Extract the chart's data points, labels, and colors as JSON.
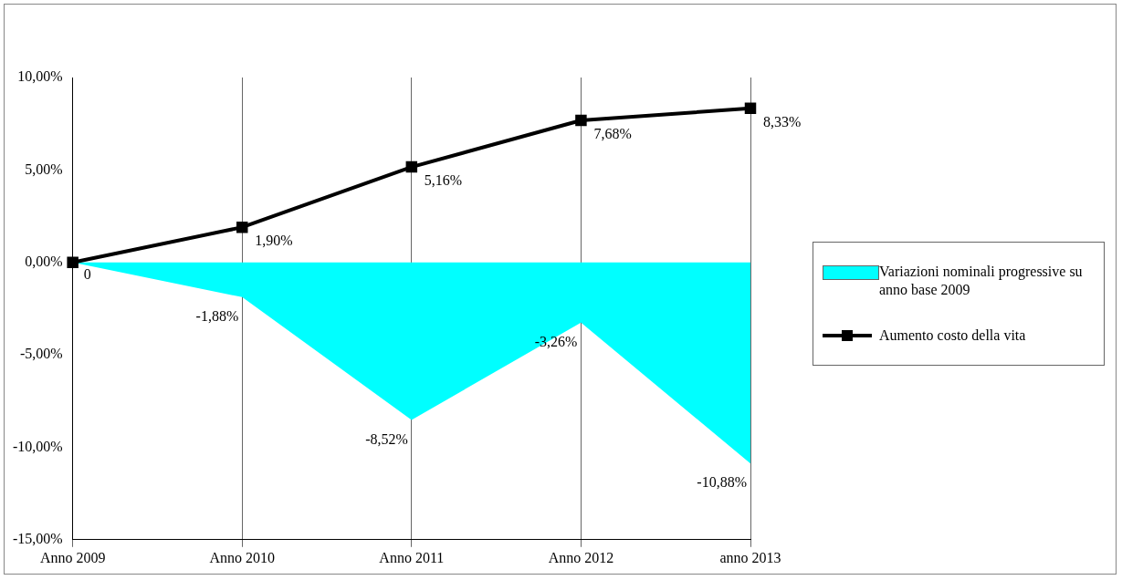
{
  "chart_data": {
    "type": "area",
    "categories": [
      "Anno 2009",
      "Anno 2010",
      "Anno 2011",
      "Anno 2012",
      "anno 2013"
    ],
    "series": [
      {
        "name": "Variazioni nominali progressive su anno base 2009",
        "color": "#00ffff",
        "values": [
          0,
          -1.88,
          -8.52,
          -3.26,
          -10.88
        ],
        "value_labels": [
          "0",
          "-1,88%",
          "-8,52%",
          "-3,26%",
          "-10,88%"
        ]
      },
      {
        "name": "Aumento costo della vita",
        "type": "line",
        "color": "#000000",
        "marker": "square",
        "line_style": "solid",
        "values": [
          0,
          1.9,
          5.16,
          7.68,
          8.33
        ],
        "value_labels": [
          null,
          "1,90%",
          "5,16%",
          "7,68%",
          "8,33%"
        ]
      }
    ],
    "ylim": [
      -15,
      10
    ],
    "yticks": [
      {
        "value": -15,
        "label": "-15,00%"
      },
      {
        "value": -10,
        "label": "-10,00%"
      },
      {
        "value": -5,
        "label": "-5,00%"
      },
      {
        "value": 0,
        "label": "0,00%"
      },
      {
        "value": 5,
        "label": "5,00%"
      },
      {
        "value": 10,
        "label": "10,00%"
      }
    ],
    "grid": "x",
    "legend": "right"
  }
}
